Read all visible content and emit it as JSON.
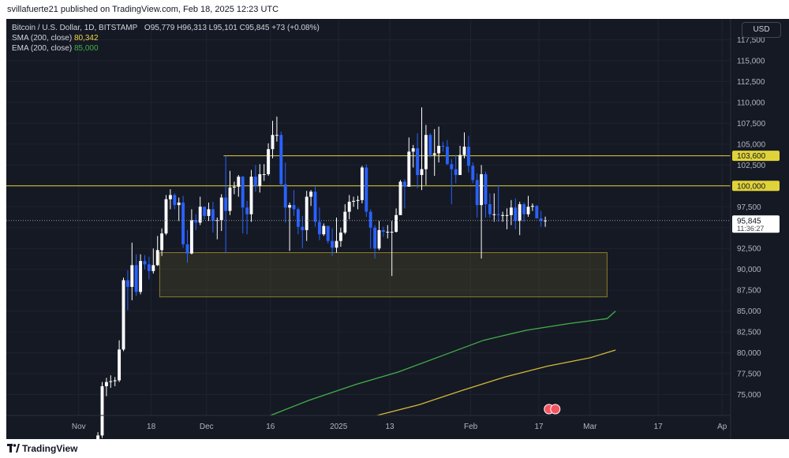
{
  "header": {
    "publish_line": "svillafuerte21 published on TradingView.com, Feb 18, 2025 12:23 UTC"
  },
  "legend": {
    "symbol": "Bitcoin / U.S. Dollar, 1D, BITSTAMP",
    "open_label": "O",
    "open": "95,779",
    "high_label": "H",
    "high": "96,313",
    "low_label": "L",
    "low": "95,101",
    "close_label": "C",
    "close": "95,845",
    "change": "+73 (+0.08%)",
    "sma_label": "SMA (200, close)",
    "sma_value": "80,342",
    "ema_label": "EMA (200, close)",
    "ema_value": "85,000"
  },
  "toolbar": {
    "currency": "USD"
  },
  "footer": {
    "brand": "TradingView"
  },
  "chart_data": {
    "type": "candlestick",
    "y_axis": {
      "range": [
        72500,
        120000
      ],
      "ticks": [
        "117,500",
        "115,000",
        "112,500",
        "110,000",
        "107,500",
        "105,000",
        "102,500",
        "100,000",
        "97,500",
        "95,000",
        "92,500",
        "90,000",
        "87,500",
        "85,000",
        "82,500",
        "80,000",
        "77,500",
        "75,000"
      ],
      "tick_values": [
        117500,
        115000,
        112500,
        110000,
        107500,
        105000,
        102500,
        100000,
        97500,
        95000,
        92500,
        90000,
        87500,
        85000,
        82500,
        80000,
        77500,
        75000
      ]
    },
    "x_axis": {
      "start_date": "2024-10-15",
      "end_date": "2025-04-03",
      "ticks": [
        {
          "label": "Nov",
          "date": "2024-11-01"
        },
        {
          "label": "18",
          "date": "2024-11-18"
        },
        {
          "label": "Dec",
          "date": "2024-12-01"
        },
        {
          "label": "16",
          "date": "2024-12-16"
        },
        {
          "label": "2025",
          "date": "2025-01-01"
        },
        {
          "label": "13",
          "date": "2025-01-13"
        },
        {
          "label": "Feb",
          "date": "2025-02-01"
        },
        {
          "label": "17",
          "date": "2025-02-17"
        },
        {
          "label": "Mar",
          "date": "2025-03-01"
        },
        {
          "label": "17",
          "date": "2025-03-17"
        },
        {
          "label": "Ap",
          "date": "2025-04-01"
        }
      ]
    },
    "price_labels": {
      "last": "95,845",
      "countdown": "11:36:27",
      "line_103600": "103,600",
      "line_100000": "100,000"
    },
    "horizontal_lines": [
      {
        "value": 103600,
        "from": "2024-12-05",
        "color": "#e0d33a"
      },
      {
        "value": 100000,
        "from": "2024-10-15",
        "color": "#e0d33a"
      }
    ],
    "zones": [
      {
        "from": "2024-11-20",
        "to": "2025-03-05",
        "low": 86700,
        "high": 92000,
        "color": "#8c7d2a"
      }
    ],
    "colors": {
      "up": "#ffffff",
      "down": "#2962ff",
      "ema": "#43b049",
      "sma": "#d4b83a",
      "accent": "#e0d33a"
    },
    "candles": [
      {
        "date": "2024-11-05",
        "o": 69300,
        "h": 70500,
        "l": 69000,
        "c": 70100
      },
      {
        "date": "2024-11-06",
        "o": 70100,
        "h": 76500,
        "l": 69800,
        "c": 76000
      },
      {
        "date": "2024-11-07",
        "o": 76000,
        "h": 77000,
        "l": 74800,
        "c": 76500
      },
      {
        "date": "2024-11-08",
        "o": 76500,
        "h": 77300,
        "l": 75800,
        "c": 76600
      },
      {
        "date": "2024-11-09",
        "o": 76600,
        "h": 77100,
        "l": 76000,
        "c": 76700
      },
      {
        "date": "2024-11-10",
        "o": 76700,
        "h": 81500,
        "l": 76500,
        "c": 80400
      },
      {
        "date": "2024-11-11",
        "o": 80400,
        "h": 89000,
        "l": 80200,
        "c": 88700
      },
      {
        "date": "2024-11-12",
        "o": 88700,
        "h": 89900,
        "l": 85100,
        "c": 87900
      },
      {
        "date": "2024-11-13",
        "o": 87900,
        "h": 93200,
        "l": 86300,
        "c": 90500
      },
      {
        "date": "2024-11-14",
        "o": 90500,
        "h": 91800,
        "l": 86800,
        "c": 87300
      },
      {
        "date": "2024-11-15",
        "o": 87300,
        "h": 91800,
        "l": 87000,
        "c": 91000
      },
      {
        "date": "2024-11-16",
        "o": 91000,
        "h": 91700,
        "l": 90000,
        "c": 90600
      },
      {
        "date": "2024-11-17",
        "o": 90600,
        "h": 91500,
        "l": 88800,
        "c": 89800
      },
      {
        "date": "2024-11-18",
        "o": 89800,
        "h": 92500,
        "l": 89500,
        "c": 90500
      },
      {
        "date": "2024-11-19",
        "o": 90500,
        "h": 94000,
        "l": 90400,
        "c": 92300
      },
      {
        "date": "2024-11-20",
        "o": 92300,
        "h": 94900,
        "l": 91600,
        "c": 94300
      },
      {
        "date": "2024-11-21",
        "o": 94300,
        "h": 98900,
        "l": 94100,
        "c": 98400
      },
      {
        "date": "2024-11-22",
        "o": 98400,
        "h": 99600,
        "l": 97200,
        "c": 98900
      },
      {
        "date": "2024-11-23",
        "o": 98900,
        "h": 99100,
        "l": 97200,
        "c": 97700
      },
      {
        "date": "2024-11-24",
        "o": 97700,
        "h": 98600,
        "l": 95800,
        "c": 98000
      },
      {
        "date": "2024-11-25",
        "o": 98000,
        "h": 98800,
        "l": 92600,
        "c": 93000
      },
      {
        "date": "2024-11-26",
        "o": 93000,
        "h": 94700,
        "l": 90800,
        "c": 91900
      },
      {
        "date": "2024-11-27",
        "o": 91900,
        "h": 97200,
        "l": 91800,
        "c": 95900
      },
      {
        "date": "2024-11-28",
        "o": 95900,
        "h": 96600,
        "l": 94700,
        "c": 95600
      },
      {
        "date": "2024-11-29",
        "o": 95600,
        "h": 98700,
        "l": 95300,
        "c": 97500
      },
      {
        "date": "2024-11-30",
        "o": 97500,
        "h": 97500,
        "l": 96000,
        "c": 96400
      },
      {
        "date": "2024-12-01",
        "o": 96400,
        "h": 98000,
        "l": 95800,
        "c": 97200
      },
      {
        "date": "2024-12-02",
        "o": 97200,
        "h": 98100,
        "l": 94400,
        "c": 95800
      },
      {
        "date": "2024-12-03",
        "o": 95800,
        "h": 96200,
        "l": 93600,
        "c": 95900
      },
      {
        "date": "2024-12-04",
        "o": 95900,
        "h": 99000,
        "l": 94600,
        "c": 98600
      },
      {
        "date": "2024-12-05",
        "o": 98600,
        "h": 103600,
        "l": 92000,
        "c": 97000
      },
      {
        "date": "2024-12-06",
        "o": 97000,
        "h": 101800,
        "l": 96500,
        "c": 99800
      },
      {
        "date": "2024-12-07",
        "o": 99800,
        "h": 100500,
        "l": 99000,
        "c": 99900
      },
      {
        "date": "2024-12-08",
        "o": 99900,
        "h": 101300,
        "l": 98700,
        "c": 101100
      },
      {
        "date": "2024-12-09",
        "o": 101100,
        "h": 101200,
        "l": 94300,
        "c": 97400
      },
      {
        "date": "2024-12-10",
        "o": 97400,
        "h": 98200,
        "l": 94200,
        "c": 96600
      },
      {
        "date": "2024-12-11",
        "o": 96600,
        "h": 101900,
        "l": 95700,
        "c": 101100
      },
      {
        "date": "2024-12-12",
        "o": 101100,
        "h": 102500,
        "l": 99300,
        "c": 100000
      },
      {
        "date": "2024-12-13",
        "o": 100000,
        "h": 102600,
        "l": 99200,
        "c": 101400
      },
      {
        "date": "2024-12-14",
        "o": 101400,
        "h": 102600,
        "l": 100600,
        "c": 101400
      },
      {
        "date": "2024-12-15",
        "o": 101400,
        "h": 105100,
        "l": 101200,
        "c": 104400
      },
      {
        "date": "2024-12-16",
        "o": 104400,
        "h": 107800,
        "l": 103300,
        "c": 106100
      },
      {
        "date": "2024-12-17",
        "o": 106100,
        "h": 108300,
        "l": 105300,
        "c": 106100
      },
      {
        "date": "2024-12-18",
        "o": 106100,
        "h": 106500,
        "l": 100000,
        "c": 100200
      },
      {
        "date": "2024-12-19",
        "o": 100200,
        "h": 102800,
        "l": 95600,
        "c": 97400
      },
      {
        "date": "2024-12-20",
        "o": 97400,
        "h": 98000,
        "l": 92200,
        "c": 97700
      },
      {
        "date": "2024-12-21",
        "o": 97700,
        "h": 99500,
        "l": 96400,
        "c": 97200
      },
      {
        "date": "2024-12-22",
        "o": 97200,
        "h": 97400,
        "l": 94200,
        "c": 95100
      },
      {
        "date": "2024-12-23",
        "o": 95100,
        "h": 96400,
        "l": 92500,
        "c": 94700
      },
      {
        "date": "2024-12-24",
        "o": 94700,
        "h": 99400,
        "l": 93400,
        "c": 98700
      },
      {
        "date": "2024-12-25",
        "o": 98700,
        "h": 99500,
        "l": 97600,
        "c": 99300
      },
      {
        "date": "2024-12-26",
        "o": 99300,
        "h": 99900,
        "l": 95100,
        "c": 95700
      },
      {
        "date": "2024-12-27",
        "o": 95700,
        "h": 97400,
        "l": 93500,
        "c": 94200
      },
      {
        "date": "2024-12-28",
        "o": 94200,
        "h": 95500,
        "l": 94000,
        "c": 95200
      },
      {
        "date": "2024-12-29",
        "o": 95200,
        "h": 95200,
        "l": 93100,
        "c": 93400
      },
      {
        "date": "2024-12-30",
        "o": 93400,
        "h": 94900,
        "l": 91600,
        "c": 92600
      },
      {
        "date": "2024-12-31",
        "o": 92600,
        "h": 96200,
        "l": 92000,
        "c": 93400
      },
      {
        "date": "2025-01-01",
        "o": 93400,
        "h": 95000,
        "l": 92700,
        "c": 94400
      },
      {
        "date": "2025-01-02",
        "o": 94400,
        "h": 97800,
        "l": 94200,
        "c": 96900
      },
      {
        "date": "2025-01-03",
        "o": 96900,
        "h": 98900,
        "l": 96000,
        "c": 98100
      },
      {
        "date": "2025-01-04",
        "o": 98100,
        "h": 98700,
        "l": 97500,
        "c": 98200
      },
      {
        "date": "2025-01-05",
        "o": 98200,
        "h": 98800,
        "l": 97200,
        "c": 98300
      },
      {
        "date": "2025-01-06",
        "o": 98300,
        "h": 102400,
        "l": 97900,
        "c": 102200
      },
      {
        "date": "2025-01-07",
        "o": 102200,
        "h": 102600,
        "l": 96300,
        "c": 96900
      },
      {
        "date": "2025-01-08",
        "o": 96900,
        "h": 97200,
        "l": 92500,
        "c": 95000
      },
      {
        "date": "2025-01-09",
        "o": 95000,
        "h": 95300,
        "l": 91300,
        "c": 92500
      },
      {
        "date": "2025-01-10",
        "o": 92500,
        "h": 95800,
        "l": 92300,
        "c": 94700
      },
      {
        "date": "2025-01-11",
        "o": 94700,
        "h": 95100,
        "l": 93900,
        "c": 94500
      },
      {
        "date": "2025-01-12",
        "o": 94500,
        "h": 95300,
        "l": 93700,
        "c": 94500
      },
      {
        "date": "2025-01-13",
        "o": 94500,
        "h": 95800,
        "l": 89200,
        "c": 94500
      },
      {
        "date": "2025-01-14",
        "o": 94500,
        "h": 97300,
        "l": 94400,
        "c": 96500
      },
      {
        "date": "2025-01-15",
        "o": 96500,
        "h": 100700,
        "l": 96500,
        "c": 100500
      },
      {
        "date": "2025-01-16",
        "o": 100500,
        "h": 100800,
        "l": 97300,
        "c": 99900
      },
      {
        "date": "2025-01-17",
        "o": 99900,
        "h": 105800,
        "l": 99900,
        "c": 104100
      },
      {
        "date": "2025-01-18",
        "o": 104100,
        "h": 104900,
        "l": 102200,
        "c": 104500
      },
      {
        "date": "2025-01-19",
        "o": 104500,
        "h": 106300,
        "l": 99700,
        "c": 101300
      },
      {
        "date": "2025-01-20",
        "o": 101300,
        "h": 109400,
        "l": 99500,
        "c": 102000
      },
      {
        "date": "2025-01-21",
        "o": 102000,
        "h": 107300,
        "l": 100100,
        "c": 106100
      },
      {
        "date": "2025-01-22",
        "o": 106100,
        "h": 106300,
        "l": 103400,
        "c": 103700
      },
      {
        "date": "2025-01-23",
        "o": 103700,
        "h": 106800,
        "l": 101200,
        "c": 103900
      },
      {
        "date": "2025-01-24",
        "o": 103900,
        "h": 107100,
        "l": 102800,
        "c": 104800
      },
      {
        "date": "2025-01-25",
        "o": 104800,
        "h": 105300,
        "l": 104100,
        "c": 104700
      },
      {
        "date": "2025-01-26",
        "o": 104700,
        "h": 105500,
        "l": 102500,
        "c": 102600
      },
      {
        "date": "2025-01-27",
        "o": 102600,
        "h": 103200,
        "l": 97800,
        "c": 102000
      },
      {
        "date": "2025-01-28",
        "o": 102000,
        "h": 103700,
        "l": 100300,
        "c": 101300
      },
      {
        "date": "2025-01-29",
        "o": 101300,
        "h": 104800,
        "l": 101300,
        "c": 103700
      },
      {
        "date": "2025-01-30",
        "o": 103700,
        "h": 106400,
        "l": 103300,
        "c": 104700
      },
      {
        "date": "2025-01-31",
        "o": 104700,
        "h": 106000,
        "l": 101600,
        "c": 102400
      },
      {
        "date": "2025-02-01",
        "o": 102400,
        "h": 102800,
        "l": 100300,
        "c": 100700
      },
      {
        "date": "2025-02-02",
        "o": 100700,
        "h": 101500,
        "l": 96200,
        "c": 97700
      },
      {
        "date": "2025-02-03",
        "o": 97700,
        "h": 102500,
        "l": 91300,
        "c": 101400
      },
      {
        "date": "2025-02-04",
        "o": 101400,
        "h": 101700,
        "l": 96200,
        "c": 97800
      },
      {
        "date": "2025-02-05",
        "o": 97800,
        "h": 99100,
        "l": 96200,
        "c": 96600
      },
      {
        "date": "2025-02-06",
        "o": 96600,
        "h": 99100,
        "l": 95700,
        "c": 96600
      },
      {
        "date": "2025-02-07",
        "o": 96600,
        "h": 100100,
        "l": 95700,
        "c": 96500
      },
      {
        "date": "2025-02-08",
        "o": 96500,
        "h": 96900,
        "l": 95700,
        "c": 96500
      },
      {
        "date": "2025-02-09",
        "o": 96500,
        "h": 97300,
        "l": 94800,
        "c": 96500
      },
      {
        "date": "2025-02-10",
        "o": 96500,
        "h": 98300,
        "l": 95300,
        "c": 97400
      },
      {
        "date": "2025-02-11",
        "o": 97400,
        "h": 98500,
        "l": 94800,
        "c": 95800
      },
      {
        "date": "2025-02-12",
        "o": 95800,
        "h": 98100,
        "l": 94100,
        "c": 97800
      },
      {
        "date": "2025-02-13",
        "o": 97800,
        "h": 98000,
        "l": 95700,
        "c": 96600
      },
      {
        "date": "2025-02-14",
        "o": 96600,
        "h": 98800,
        "l": 96300,
        "c": 97500
      },
      {
        "date": "2025-02-15",
        "o": 97500,
        "h": 97900,
        "l": 97000,
        "c": 97600
      },
      {
        "date": "2025-02-16",
        "o": 97600,
        "h": 97700,
        "l": 96100,
        "c": 96100
      },
      {
        "date": "2025-02-17",
        "o": 96100,
        "h": 97000,
        "l": 95100,
        "c": 95800
      },
      {
        "date": "2025-02-18",
        "o": 95779,
        "h": 96313,
        "l": 95101,
        "c": 95845
      }
    ],
    "ema_points": [
      {
        "date": "2024-12-16",
        "value": 72500
      },
      {
        "date": "2024-12-25",
        "value": 74300
      },
      {
        "date": "2025-01-05",
        "value": 76200
      },
      {
        "date": "2025-01-15",
        "value": 77700
      },
      {
        "date": "2025-01-25",
        "value": 79600
      },
      {
        "date": "2025-02-04",
        "value": 81500
      },
      {
        "date": "2025-02-14",
        "value": 82700
      },
      {
        "date": "2025-02-24",
        "value": 83500
      },
      {
        "date": "2025-03-05",
        "value": 84100
      },
      {
        "date": "2025-03-07",
        "value": 85000
      }
    ],
    "sma_points": [
      {
        "date": "2025-01-10",
        "value": 72500
      },
      {
        "date": "2025-01-20",
        "value": 73800
      },
      {
        "date": "2025-01-30",
        "value": 75500
      },
      {
        "date": "2025-02-09",
        "value": 77100
      },
      {
        "date": "2025-02-19",
        "value": 78400
      },
      {
        "date": "2025-03-01",
        "value": 79400
      },
      {
        "date": "2025-03-07",
        "value": 80342
      }
    ]
  }
}
